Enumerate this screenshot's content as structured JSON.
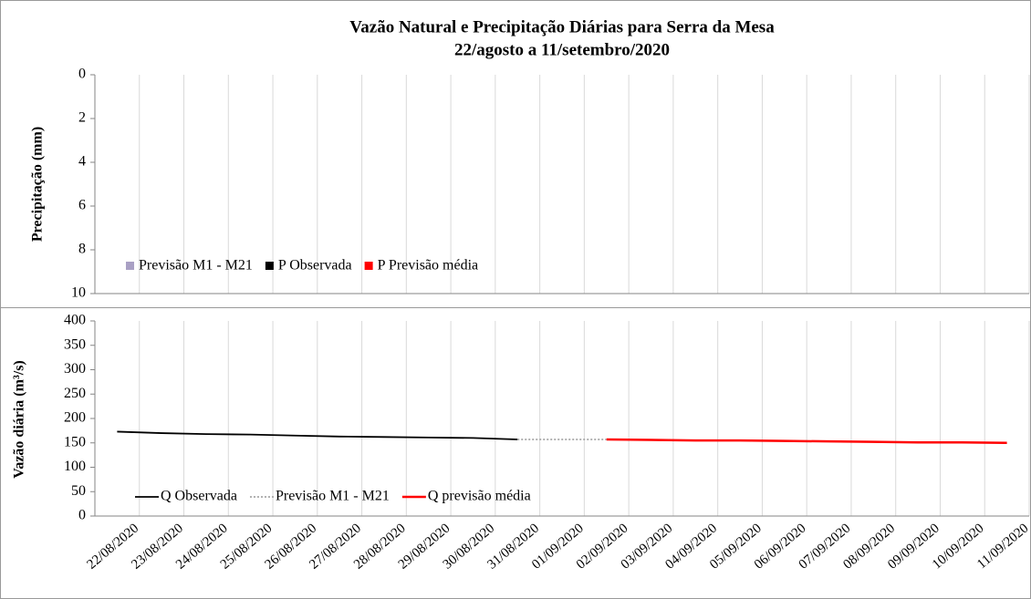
{
  "chart_data": [
    {
      "type": "bar",
      "title": "Vazão Natural e Precipitação Diárias para Serra da Mesa",
      "subtitle": "22/agosto a 11/setembro/2020",
      "y_label": "Precipitação (mm)",
      "ylim": [
        10,
        0
      ],
      "yticks": [
        0,
        2,
        4,
        6,
        8,
        10
      ],
      "grid": "x",
      "series": [
        {
          "name": "Previsão M1 - M21",
          "color": "#a9a0c4",
          "values": [
            null,
            null,
            null,
            null,
            null,
            null,
            null,
            null,
            null,
            null,
            0,
            0,
            0,
            0,
            0,
            0,
            0,
            0,
            0,
            0,
            0
          ]
        },
        {
          "name": "P Observada",
          "color": "#000000",
          "values": [
            0,
            0,
            0,
            0,
            0,
            0,
            0,
            0,
            0,
            0,
            null,
            null,
            null,
            null,
            null,
            null,
            null,
            null,
            null,
            null,
            null
          ]
        },
        {
          "name": "P Previsão média",
          "color": "#ff0000",
          "values": [
            null,
            null,
            null,
            null,
            null,
            null,
            null,
            null,
            null,
            null,
            0,
            0,
            0,
            0,
            0,
            0,
            0,
            0,
            0,
            0,
            0
          ]
        }
      ]
    },
    {
      "type": "line",
      "y_label": "Vazão diária (m³/s)",
      "ylim": [
        0,
        400
      ],
      "yticks": [
        0,
        50,
        100,
        150,
        200,
        250,
        300,
        350,
        400
      ],
      "grid": "x",
      "categories": [
        "22/08/2020",
        "23/08/2020",
        "24/08/2020",
        "25/08/2020",
        "26/08/2020",
        "27/08/2020",
        "28/08/2020",
        "29/08/2020",
        "30/08/2020",
        "31/08/2020",
        "01/09/2020",
        "02/09/2020",
        "03/09/2020",
        "04/09/2020",
        "05/09/2020",
        "06/09/2020",
        "07/09/2020",
        "08/09/2020",
        "09/09/2020",
        "10/09/2020",
        "11/09/2020"
      ],
      "series": [
        {
          "name": "Q Observada",
          "color": "#000000",
          "values": [
            173,
            170,
            168,
            167,
            165,
            163,
            162,
            161,
            160,
            157,
            null,
            null,
            null,
            null,
            null,
            null,
            null,
            null,
            null,
            null,
            null
          ]
        },
        {
          "name": "Previsão M1 - M21",
          "color": "#a6a6a6",
          "dashed": true,
          "values": [
            null,
            null,
            null,
            null,
            null,
            null,
            null,
            null,
            null,
            157,
            157,
            157,
            null,
            null,
            null,
            null,
            null,
            null,
            null,
            null,
            null
          ]
        },
        {
          "name": "Q previsão média",
          "color": "#ff0000",
          "values": [
            null,
            null,
            null,
            null,
            null,
            null,
            null,
            null,
            null,
            null,
            null,
            157,
            156,
            155,
            155,
            154,
            153,
            152,
            151,
            151,
            150
          ]
        }
      ]
    }
  ]
}
